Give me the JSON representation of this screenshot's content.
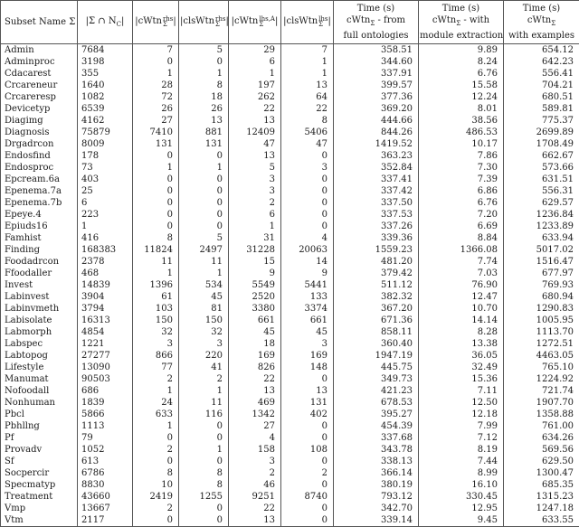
{
  "table": {
    "header": {
      "subset_name": "Subset Name Σ",
      "sigma_cap": {
        "pre": "|Σ ∩ N",
        "sub": "C",
        "post": "|"
      },
      "cwtn_rhs": {
        "pre": "|cWtn",
        "sup": "rhs",
        "sub": "Σ",
        "post": "|"
      },
      "clswtn_rhs": {
        "pre": "|clsWtn",
        "sup": "rhs",
        "sub": "Σ",
        "post": "|"
      },
      "cwtn_lhs": {
        "pre": "|cWtn",
        "sup": "lhs,A",
        "sub": "Σ",
        "post": "|"
      },
      "clswtn_lhs": {
        "pre": "|clsWtn",
        "sup": "lhs",
        "sub": "Σ",
        "post": "|"
      },
      "time_full": {
        "line1": "Time (s)",
        "line2_pre": "cWtn",
        "line2_sub": "Σ",
        "line2_post": " - from",
        "line3": "full ontologies"
      },
      "time_module": {
        "line1": "Time (s)",
        "line2_pre": "cWtn",
        "line2_sub": "Σ",
        "line2_post": " - with",
        "line3": "module extraction"
      },
      "time_examples": {
        "line1": "Time (s)",
        "line2_pre": "cWtn",
        "line2_sub": "Σ",
        "line2_post": "",
        "line3": "with examples"
      }
    },
    "rows": [
      [
        "Admin",
        "7684",
        "7",
        "5",
        "29",
        "7",
        "358.51",
        "9.89",
        "654.12"
      ],
      [
        "Adminproc",
        "3198",
        "0",
        "0",
        "6",
        "1",
        "344.60",
        "8.24",
        "642.23"
      ],
      [
        "Cdacarest",
        "355",
        "1",
        "1",
        "1",
        "1",
        "337.91",
        "6.76",
        "556.41"
      ],
      [
        "Crcareneur",
        "1640",
        "28",
        "8",
        "197",
        "13",
        "399.57",
        "15.58",
        "704.21"
      ],
      [
        "Crcareresp",
        "1082",
        "72",
        "18",
        "262",
        "64",
        "377.36",
        "12.24",
        "680.51"
      ],
      [
        "Devicetyp",
        "6539",
        "26",
        "26",
        "22",
        "22",
        "369.20",
        "8.01",
        "589.81"
      ],
      [
        "Diagimg",
        "4162",
        "27",
        "13",
        "13",
        "8",
        "444.66",
        "38.56",
        "775.37"
      ],
      [
        "Diagnosis",
        "75879",
        "7410",
        "881",
        "12409",
        "5406",
        "844.26",
        "486.53",
        "2699.89"
      ],
      [
        "Drgadrcon",
        "8009",
        "131",
        "131",
        "47",
        "47",
        "1419.52",
        "10.17",
        "1708.49"
      ],
      [
        "Endosfind",
        "178",
        "0",
        "0",
        "13",
        "0",
        "363.23",
        "7.86",
        "662.67"
      ],
      [
        "Endosproc",
        "73",
        "1",
        "1",
        "5",
        "3",
        "352.84",
        "7.30",
        "573.66"
      ],
      [
        "Epcream.6a",
        "403",
        "0",
        "0",
        "3",
        "0",
        "337.41",
        "7.39",
        "631.51"
      ],
      [
        "Epenema.7a",
        "25",
        "0",
        "0",
        "3",
        "0",
        "337.42",
        "6.86",
        "556.31"
      ],
      [
        "Epenema.7b",
        "6",
        "0",
        "0",
        "2",
        "0",
        "337.50",
        "6.76",
        "629.57"
      ],
      [
        "Epeye.4",
        "223",
        "0",
        "0",
        "6",
        "0",
        "337.53",
        "7.20",
        "1236.84"
      ],
      [
        "Epiuds16",
        "1",
        "0",
        "0",
        "1",
        "0",
        "337.26",
        "6.69",
        "1233.89"
      ],
      [
        "Famhist",
        "416",
        "8",
        "5",
        "31",
        "4",
        "339.36",
        "8.84",
        "633.94"
      ],
      [
        "Finding",
        "168383",
        "11824",
        "2497",
        "31228",
        "20063",
        "1559.23",
        "1366.08",
        "5017.02"
      ],
      [
        "Foodadrcon",
        "2378",
        "11",
        "11",
        "15",
        "14",
        "481.20",
        "7.74",
        "1516.47"
      ],
      [
        "Ffoodaller",
        "468",
        "1",
        "1",
        "9",
        "9",
        "379.42",
        "7.03",
        "677.97"
      ],
      [
        "Invest",
        "14839",
        "1396",
        "534",
        "5549",
        "5441",
        "511.12",
        "76.90",
        "769.93"
      ],
      [
        "Labinvest",
        "3904",
        "61",
        "45",
        "2520",
        "133",
        "382.32",
        "12.47",
        "680.94"
      ],
      [
        "Labinvmeth",
        "3794",
        "103",
        "81",
        "3380",
        "3374",
        "367.20",
        "10.70",
        "1290.83"
      ],
      [
        "Labisolate",
        "16313",
        "150",
        "150",
        "661",
        "661",
        "671.36",
        "14.14",
        "1005.95"
      ],
      [
        "Labmorph",
        "4854",
        "32",
        "32",
        "45",
        "45",
        "858.11",
        "8.28",
        "1113.70"
      ],
      [
        "Labspec",
        "1221",
        "3",
        "3",
        "18",
        "3",
        "360.40",
        "13.38",
        "1272.51"
      ],
      [
        "Labtopog",
        "27277",
        "866",
        "220",
        "169",
        "169",
        "1947.19",
        "36.05",
        "4463.05"
      ],
      [
        "Lifestyle",
        "13090",
        "77",
        "41",
        "826",
        "148",
        "445.75",
        "32.49",
        "765.10"
      ],
      [
        "Manumat",
        "90503",
        "2",
        "2",
        "22",
        "0",
        "349.73",
        "15.36",
        "1224.92"
      ],
      [
        "Nofoodall",
        "686",
        "1",
        "1",
        "13",
        "13",
        "421.23",
        "7.11",
        "721.74"
      ],
      [
        "Nonhuman",
        "1839",
        "24",
        "11",
        "469",
        "131",
        "678.53",
        "12.50",
        "1907.70"
      ],
      [
        "Pbcl",
        "5866",
        "633",
        "116",
        "1342",
        "402",
        "395.27",
        "12.18",
        "1358.88"
      ],
      [
        "Pbhllng",
        "1113",
        "1",
        "0",
        "27",
        "0",
        "454.39",
        "7.99",
        "761.00"
      ],
      [
        "Pf",
        "79",
        "0",
        "0",
        "4",
        "0",
        "337.68",
        "7.12",
        "634.26"
      ],
      [
        "Provadv",
        "1052",
        "2",
        "1",
        "158",
        "108",
        "343.78",
        "8.19",
        "569.56"
      ],
      [
        "Sf",
        "613",
        "0",
        "0",
        "3",
        "0",
        "338.13",
        "7.44",
        "629.50"
      ],
      [
        "Socpercir",
        "6786",
        "8",
        "8",
        "2",
        "2",
        "366.14",
        "8.99",
        "1300.47"
      ],
      [
        "Specmatyp",
        "8830",
        "10",
        "8",
        "46",
        "0",
        "380.19",
        "16.10",
        "685.35"
      ],
      [
        "Treatment",
        "43660",
        "2419",
        "1255",
        "9251",
        "8740",
        "793.12",
        "330.45",
        "1315.23"
      ],
      [
        "Vmp",
        "13667",
        "2",
        "0",
        "22",
        "0",
        "342.70",
        "12.95",
        "1247.18"
      ],
      [
        "Vtm",
        "2117",
        "0",
        "0",
        "13",
        "0",
        "339.14",
        "9.45",
        "633.55"
      ]
    ]
  }
}
